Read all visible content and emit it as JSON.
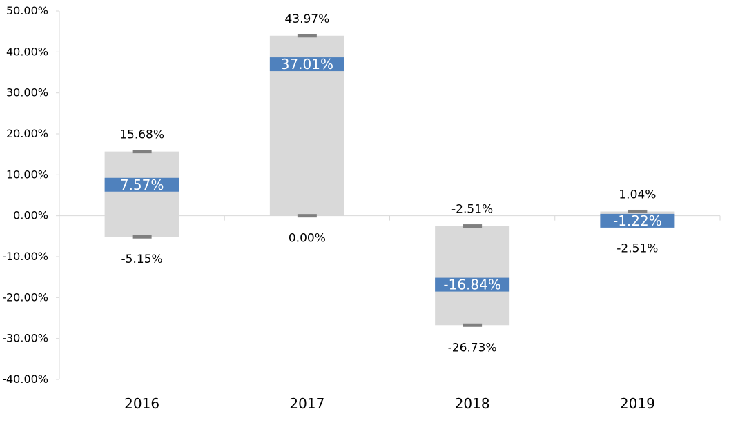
{
  "chart_data": {
    "type": "bar",
    "title": "",
    "xlabel": "",
    "ylabel": "",
    "categories": [
      "2016",
      "2017",
      "2018",
      "2019"
    ],
    "series": [
      {
        "values": [
          7.57,
          37.01,
          -16.84,
          -1.22
        ],
        "labels": [
          "7.57%",
          "37.01%",
          "-16.84%",
          "-1.22%"
        ]
      },
      {
        "values": [
          15.68,
          43.97,
          -2.51,
          1.04
        ],
        "labels": [
          "15.68%",
          "43.97%",
          "-2.51%",
          "1.04%"
        ]
      },
      {
        "values": [
          -5.15,
          0.0,
          -26.73,
          -2.51
        ],
        "labels": [
          "-5.15%",
          "0.00%",
          "-26.73%",
          "-2.51%"
        ]
      }
    ],
    "ylim": [
      -40,
      50
    ],
    "yticks": [
      50,
      40,
      30,
      20,
      10,
      0,
      -10,
      -20,
      -30,
      -40
    ],
    "ytick_labels": [
      "50.00%",
      "40.00%",
      "30.00%",
      "20.00%",
      "10.00%",
      "0.00%",
      "-10.00%",
      "-20.00%",
      "-30.00%",
      "-40.00%"
    ],
    "grid": false,
    "legend": "none",
    "colors": {
      "range_box": "#d9d9d9",
      "value_bar": "#4f81bd",
      "marker": "#7f7f7f",
      "axis": "#d9d9d9"
    }
  }
}
